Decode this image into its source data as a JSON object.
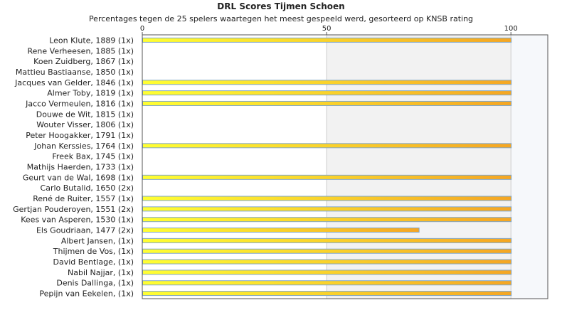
{
  "chart_data": {
    "type": "bar",
    "orientation": "horizontal",
    "title": "DRL Scores Tijmen Schoen",
    "subtitle": "Percentages tegen de 25 spelers waartegen het meest gespeeld werd, gesorteerd op KNSB rating",
    "xlim": [
      0,
      110
    ],
    "xticks": [
      0,
      50,
      100
    ],
    "grid": true,
    "categories": [
      "Leon Klute, 1889 (1x)",
      "Rene Verheesen, 1885 (1x)",
      "Koen Zuidberg, 1867 (1x)",
      "Mattieu Bastiaanse, 1850 (1x)",
      "Jacques van Gelder, 1846 (1x)",
      "Almer Toby, 1819 (1x)",
      "Jacco Vermeulen, 1816 (1x)",
      "Douwe de Wit, 1815 (1x)",
      "Wouter Visser, 1806 (1x)",
      "Peter Hoogakker, 1791 (1x)",
      "Johan Kerssies, 1764 (1x)",
      "Freek Bax, 1745 (1x)",
      "Mathijs Haerden, 1733 (1x)",
      "Geurt van de Wal, 1698 (1x)",
      "Carlo Butalid, 1650 (2x)",
      "René de Ruiter, 1557 (1x)",
      "Gertjan Pouderoyen, 1551 (2x)",
      "Kees van Asperen, 1530 (1x)",
      "Els Goudriaan, 1477 (2x)",
      "Albert Jansen,  (1x)",
      "Thijmen de Vos,  (1x)",
      "David Bentlage,  (1x)",
      "Nabil Najjar,  (1x)",
      "Denis Dallinga,  (1x)",
      "Pepijn van Eekelen,  (1x)"
    ],
    "values": [
      100,
      0,
      0,
      0,
      100,
      100,
      100,
      0,
      0,
      0,
      100,
      0,
      0,
      100,
      0,
      100,
      100,
      100,
      75,
      100,
      100,
      100,
      100,
      100,
      100
    ],
    "colors": {
      "bar_start": "#ffff33",
      "bar_end": "#f5a623",
      "bar_border": "#7fa6c9",
      "grid": "#cccccc",
      "band": "#f2f2f2",
      "band_edge": "#f6f8fb"
    }
  }
}
